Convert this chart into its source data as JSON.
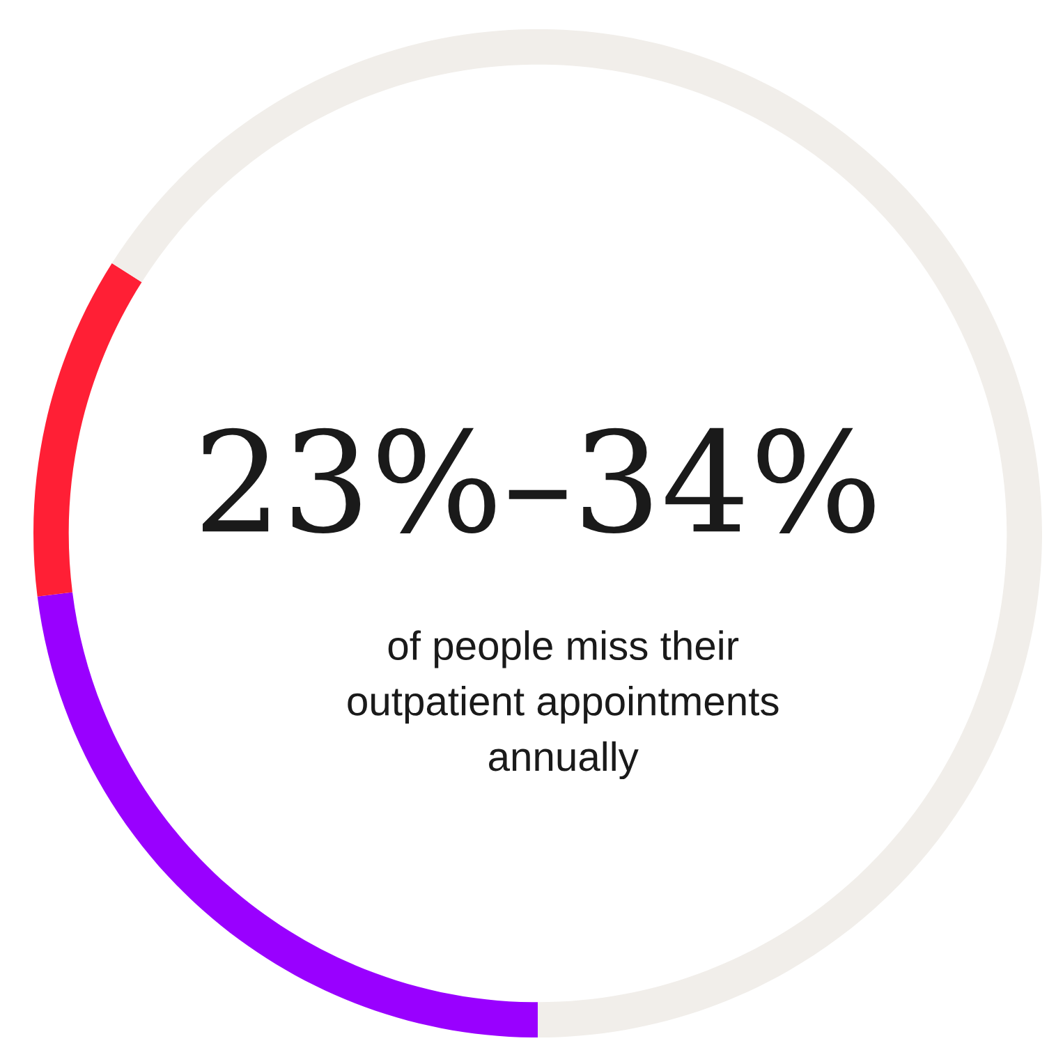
{
  "chart_data": {
    "type": "donut",
    "title": "23%–34%",
    "subtitle": "of people miss their\noutpatient appointments\nannually",
    "categories": [
      null,
      null,
      null
    ],
    "values": [
      23,
      11,
      66
    ],
    "colors": [
      "#9900ff",
      "#ff1f35",
      "#f1eeea"
    ]
  }
}
